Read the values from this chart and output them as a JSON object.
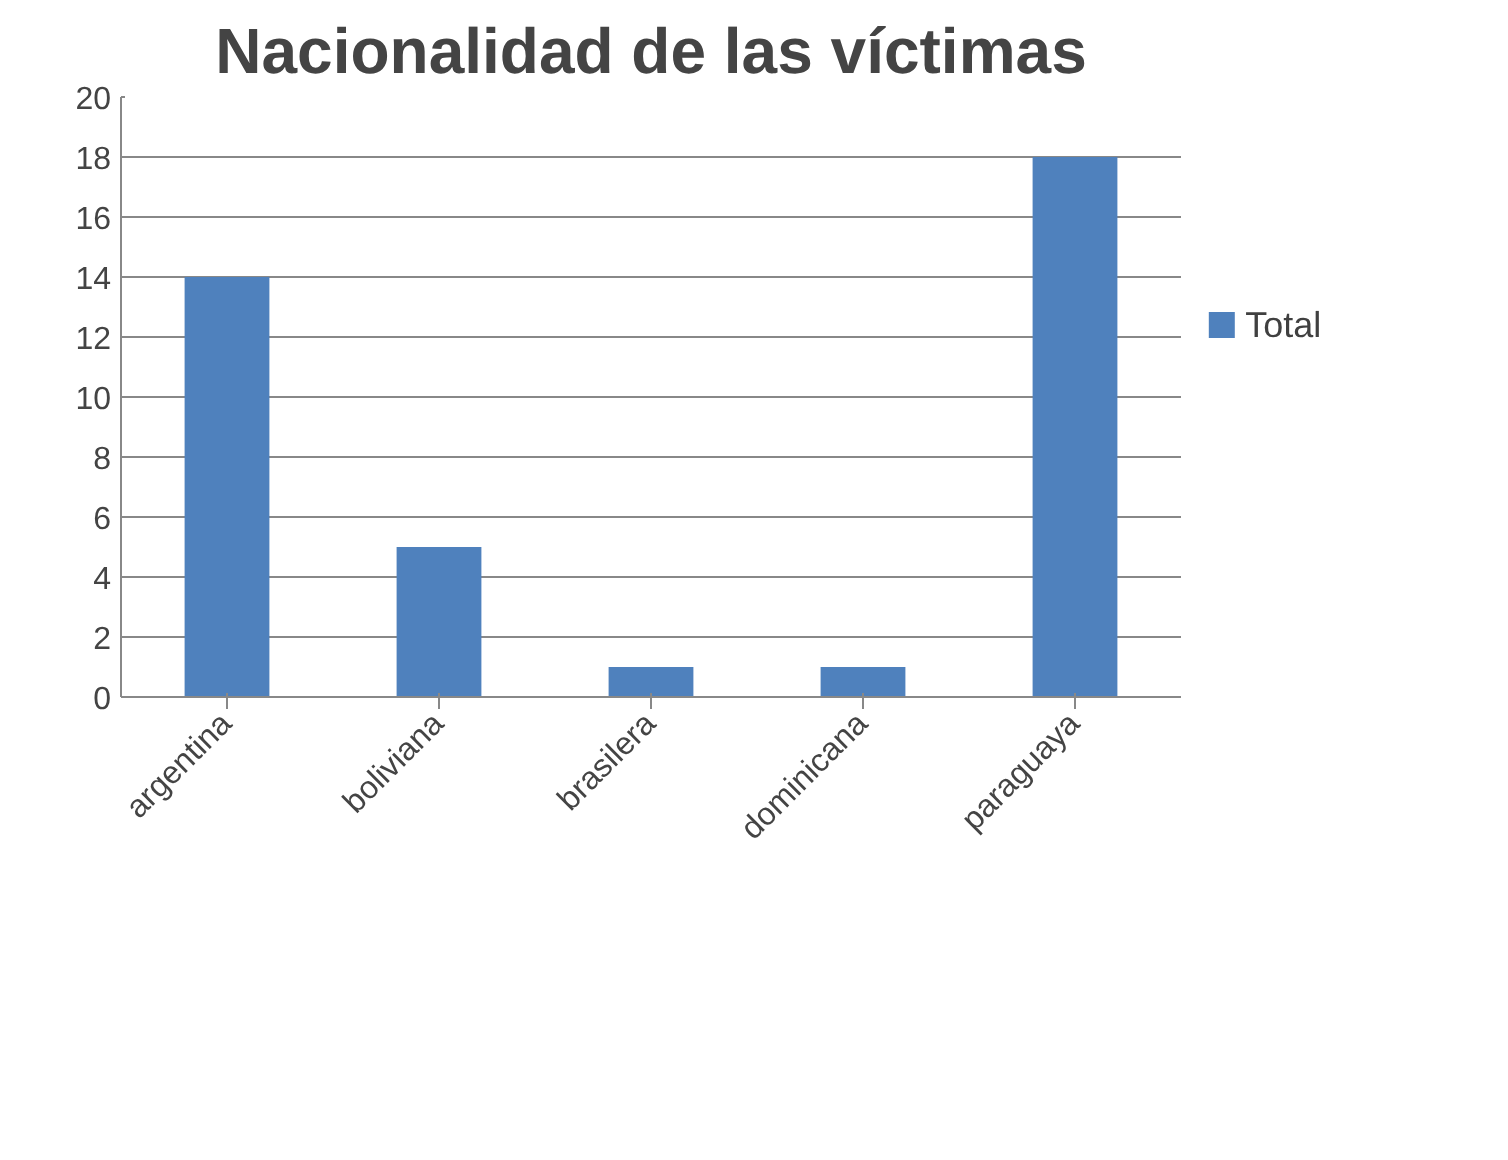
{
  "chart_data": {
    "type": "bar",
    "title": "Nacionalidad de las víctimas",
    "categories": [
      "argentina",
      "boliviana",
      "brasilera",
      "dominicana",
      "paraguaya"
    ],
    "series": [
      {
        "name": "Total",
        "color": "#4f81bd",
        "values": [
          14,
          5,
          1,
          1,
          18
        ]
      }
    ],
    "ylim": [
      0,
      20
    ],
    "yticks": [
      0,
      2,
      4,
      6,
      8,
      10,
      12,
      14,
      16,
      18,
      20
    ],
    "grid": "y",
    "legend": "right"
  }
}
